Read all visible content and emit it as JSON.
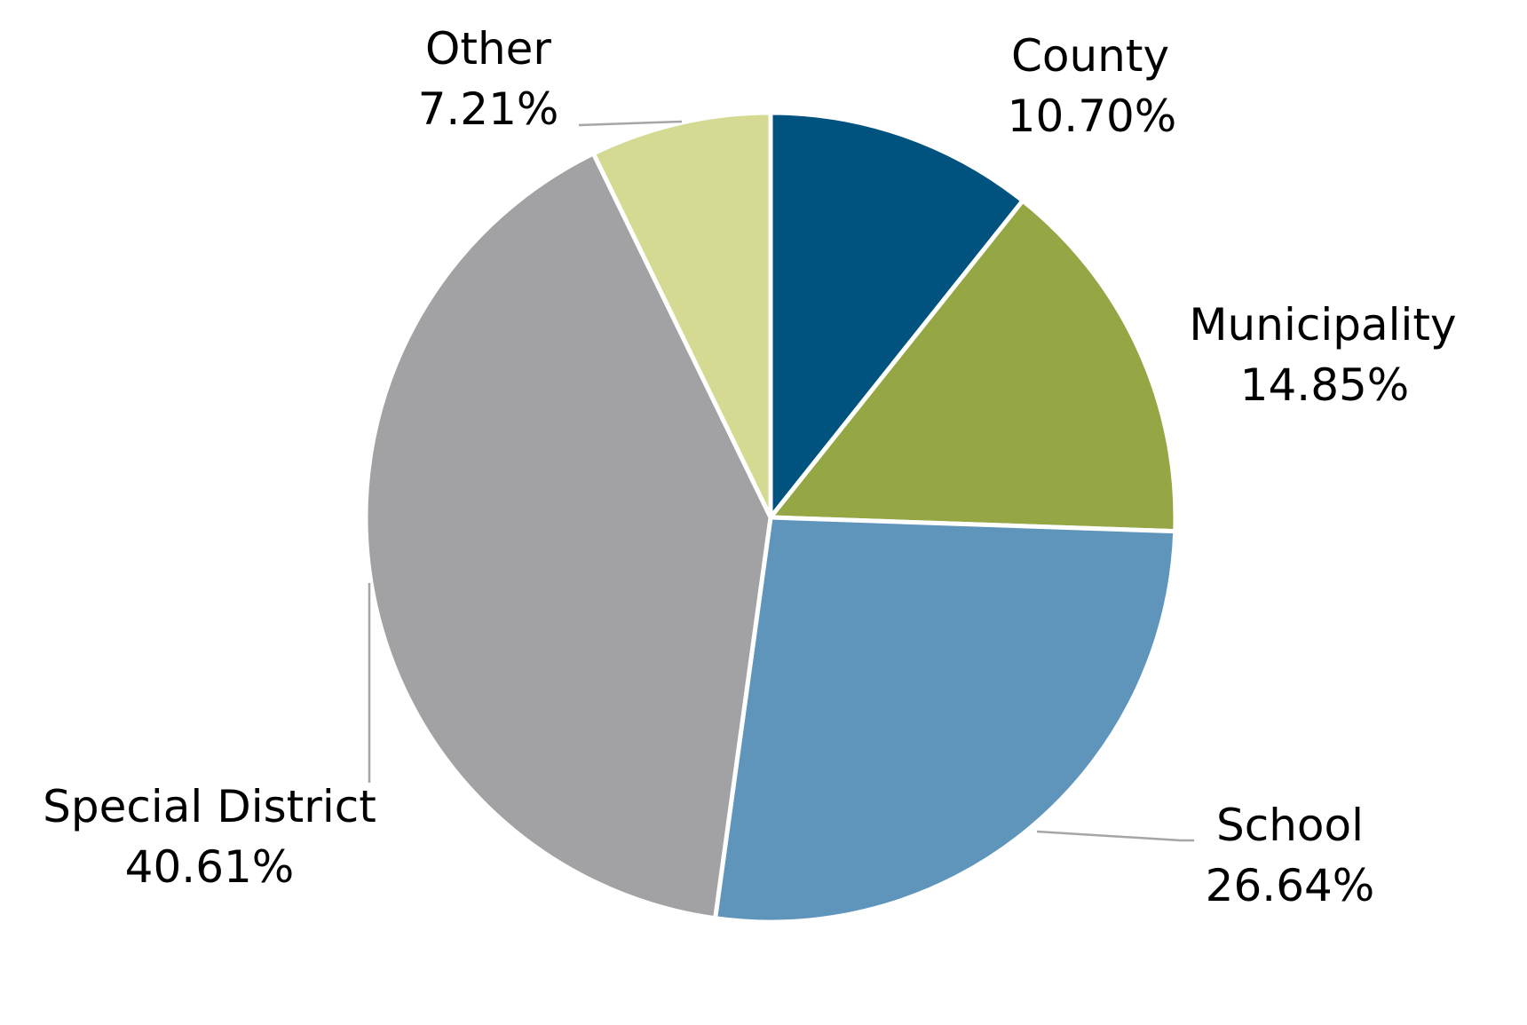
{
  "chart_data": {
    "type": "pie",
    "start_angle_deg": 0,
    "direction": "clockwise",
    "slices": [
      {
        "label": "County",
        "value": 10.7,
        "display": "10.70%",
        "color": "#00537f"
      },
      {
        "label": "Municipality",
        "value": 14.85,
        "display": "14.85%",
        "color": "#95a645"
      },
      {
        "label": "School",
        "value": 26.64,
        "display": "26.64%",
        "color": "#6095bb"
      },
      {
        "label": "Special District",
        "value": 40.61,
        "display": "40.61%",
        "color": "#a2a2a4"
      },
      {
        "label": "Other",
        "value": 7.21,
        "display": "7.21%",
        "color": "#d4da91"
      }
    ]
  }
}
